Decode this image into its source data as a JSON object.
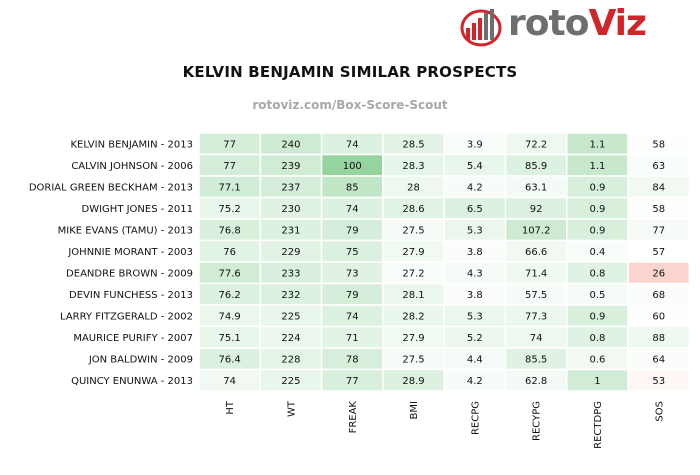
{
  "logo": {
    "part1": "roto",
    "part2": "Viz"
  },
  "title": "KELVIN BENJAMIN SIMILAR PROSPECTS",
  "subtitle": "rotoviz.com/Box-Score-Scout",
  "colors": {
    "high": "#8fd19a",
    "low": "#ffffff",
    "bad": "#fbd4d0",
    "logo_red": "#d0252a",
    "logo_gray": "#6e6e6e"
  },
  "chart_data": {
    "type": "heatmap",
    "title": "KELVIN BENJAMIN SIMILAR PROSPECTS",
    "columns": [
      "HT",
      "WT",
      "FREAK",
      "BMI",
      "RECPG",
      "RECYPG",
      "RECTDPG",
      "SOS"
    ],
    "rows": [
      "KELVIN BENJAMIN - 2013",
      "CALVIN JOHNSON - 2006",
      "DORIAL GREEN BECKHAM - 2013",
      "DWIGHT JONES - 2011",
      "MIKE EVANS (TAMU) - 2013",
      "JOHNNIE MORANT - 2003",
      "DEANDRE BROWN - 2009",
      "DEVIN FUNCHESS - 2013",
      "LARRY FITZGERALD - 2002",
      "MAURICE PURIFY - 2007",
      "JON BALDWIN - 2009",
      "QUINCY ENUNWA - 2013"
    ],
    "values": [
      [
        "77",
        "240",
        "74",
        "28.5",
        "3.9",
        "72.2",
        "1.1",
        "58"
      ],
      [
        "77",
        "239",
        "100",
        "28.3",
        "5.4",
        "85.9",
        "1.1",
        "63"
      ],
      [
        "77.1",
        "237",
        "85",
        "28",
        "4.2",
        "63.1",
        "0.9",
        "84"
      ],
      [
        "75.2",
        "230",
        "74",
        "28.6",
        "6.5",
        "92",
        "0.9",
        "58"
      ],
      [
        "76.8",
        "231",
        "79",
        "27.5",
        "5.3",
        "107.2",
        "0.9",
        "77"
      ],
      [
        "76",
        "229",
        "75",
        "27.9",
        "3.8",
        "66.6",
        "0.4",
        "57"
      ],
      [
        "77.6",
        "233",
        "73",
        "27.2",
        "4.3",
        "71.4",
        "0.8",
        "26"
      ],
      [
        "76.2",
        "232",
        "79",
        "28.1",
        "3.8",
        "57.5",
        "0.5",
        "68"
      ],
      [
        "74.9",
        "225",
        "74",
        "28.2",
        "5.3",
        "77.3",
        "0.9",
        "60"
      ],
      [
        "75.1",
        "224",
        "71",
        "27.9",
        "5.2",
        "74",
        "0.8",
        "88"
      ],
      [
        "76.4",
        "228",
        "78",
        "27.5",
        "4.4",
        "85.5",
        "0.6",
        "64"
      ],
      [
        "74",
        "225",
        "77",
        "28.9",
        "4.2",
        "62.8",
        "1",
        "53"
      ]
    ],
    "intensity": [
      [
        0.38,
        0.45,
        0.3,
        0.25,
        0.05,
        0.15,
        0.5,
        0.02
      ],
      [
        0.38,
        0.42,
        0.95,
        0.22,
        0.2,
        0.3,
        0.5,
        0.05
      ],
      [
        0.4,
        0.38,
        0.55,
        0.15,
        0.07,
        0.1,
        0.35,
        0.12
      ],
      [
        0.2,
        0.28,
        0.3,
        0.27,
        0.3,
        0.3,
        0.35,
        0.02
      ],
      [
        0.35,
        0.3,
        0.38,
        0.08,
        0.18,
        0.45,
        0.35,
        0.08
      ],
      [
        0.27,
        0.26,
        0.32,
        0.13,
        0.04,
        0.12,
        0.05,
        0.01
      ],
      [
        0.42,
        0.33,
        0.28,
        0.05,
        0.08,
        0.14,
        0.28,
        -0.55
      ],
      [
        0.3,
        0.31,
        0.38,
        0.18,
        0.04,
        0.07,
        0.08,
        0.04
      ],
      [
        0.18,
        0.2,
        0.3,
        0.2,
        0.18,
        0.17,
        0.35,
        0.02
      ],
      [
        0.2,
        0.18,
        0.25,
        0.13,
        0.17,
        0.16,
        0.28,
        0.14
      ],
      [
        0.32,
        0.24,
        0.36,
        0.08,
        0.09,
        0.28,
        0.12,
        0.04
      ],
      [
        0.12,
        0.2,
        0.35,
        0.3,
        0.07,
        0.1,
        0.42,
        -0.1
      ]
    ]
  }
}
